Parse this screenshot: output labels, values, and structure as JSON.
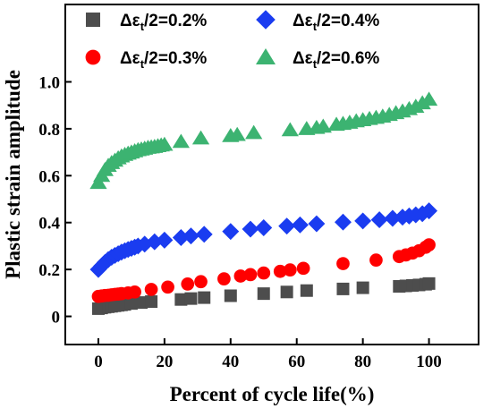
{
  "chart_data": {
    "type": "scatter",
    "xlabel": "Percent of cycle life(%)",
    "ylabel": "Plastic strain amplitude",
    "xlim": [
      -10,
      115
    ],
    "ylim": [
      -0.12,
      1.33
    ],
    "xticks": [
      0,
      20,
      40,
      60,
      80,
      100
    ],
    "yticks": [
      0,
      0.2,
      0.4,
      0.6,
      0.8,
      1.0
    ],
    "xtick_labels": [
      "0",
      "20",
      "40",
      "60",
      "80",
      "100"
    ],
    "ytick_labels": [
      "0",
      "0.2",
      "0.4",
      "0.6",
      "0.8",
      "1.0"
    ],
    "grid": false,
    "legend_position": "top",
    "series": [
      {
        "name": "Δε/2=0.2%",
        "name_prefix": "Δε",
        "name_sub": "t",
        "name_suffix": "/2=0.2%",
        "marker": "square",
        "color": "#4d4d4d",
        "x": [
          0,
          1,
          2,
          3,
          4,
          5,
          6,
          7,
          8,
          10,
          13,
          16,
          25,
          28,
          32,
          40,
          50,
          57,
          63,
          74,
          80,
          91,
          93,
          95,
          97,
          99,
          100
        ],
        "y": [
          0.033,
          0.036,
          0.039,
          0.041,
          0.043,
          0.045,
          0.047,
          0.049,
          0.051,
          0.055,
          0.059,
          0.063,
          0.072,
          0.076,
          0.08,
          0.088,
          0.097,
          0.104,
          0.11,
          0.117,
          0.122,
          0.128,
          0.13,
          0.132,
          0.134,
          0.137,
          0.14
        ]
      },
      {
        "name": "Δε/2=0.3%",
        "name_prefix": "Δε",
        "name_sub": "t",
        "name_suffix": "/2=0.3%",
        "marker": "circle",
        "color": "#ff0000",
        "x": [
          0,
          1,
          2,
          3,
          4,
          5,
          6,
          7,
          9,
          11,
          16,
          21,
          27,
          31,
          38,
          43,
          46,
          50,
          55,
          58,
          62,
          74,
          84,
          91,
          93,
          95,
          97,
          99,
          100
        ],
        "y": [
          0.085,
          0.087,
          0.089,
          0.09,
          0.092,
          0.094,
          0.095,
          0.097,
          0.1,
          0.104,
          0.115,
          0.125,
          0.138,
          0.148,
          0.16,
          0.172,
          0.178,
          0.185,
          0.192,
          0.198,
          0.205,
          0.225,
          0.24,
          0.255,
          0.262,
          0.27,
          0.28,
          0.295,
          0.305
        ]
      },
      {
        "name": "Δε/2=0.4%",
        "name_prefix": "Δε",
        "name_sub": "t",
        "name_suffix": "/2=0.4%",
        "marker": "diamond",
        "color": "#1a3cf0",
        "x": [
          0,
          1,
          2,
          3,
          4,
          5,
          6,
          7,
          8,
          9,
          10,
          11,
          12,
          14,
          17,
          20,
          25,
          28,
          32,
          40,
          46,
          50,
          57,
          61,
          66,
          74,
          80,
          85,
          89,
          92,
          94,
          96,
          98,
          100
        ],
        "y": [
          0.2,
          0.215,
          0.23,
          0.242,
          0.252,
          0.26,
          0.267,
          0.274,
          0.28,
          0.285,
          0.29,
          0.295,
          0.3,
          0.308,
          0.318,
          0.325,
          0.336,
          0.343,
          0.35,
          0.362,
          0.372,
          0.378,
          0.385,
          0.39,
          0.395,
          0.402,
          0.407,
          0.412,
          0.418,
          0.423,
          0.428,
          0.433,
          0.438,
          0.45
        ]
      },
      {
        "name": "Δε/2=0.6%",
        "name_prefix": "Δε",
        "name_sub": "t",
        "name_suffix": "/2=0.6%",
        "marker": "triangle",
        "color": "#3cb371",
        "x": [
          0,
          1,
          2,
          3,
          4,
          5,
          6,
          7,
          8,
          9,
          10,
          11,
          12,
          13,
          14,
          15,
          16,
          17,
          18,
          19,
          20,
          25,
          31,
          40,
          42,
          47,
          58,
          63,
          66,
          68,
          72,
          74,
          76,
          78,
          80,
          82,
          84,
          86,
          88,
          90,
          92,
          94,
          96,
          98,
          100
        ],
        "y": [
          0.57,
          0.6,
          0.625,
          0.643,
          0.655,
          0.665,
          0.675,
          0.683,
          0.69,
          0.695,
          0.7,
          0.705,
          0.71,
          0.713,
          0.716,
          0.72,
          0.722,
          0.724,
          0.727,
          0.73,
          0.733,
          0.745,
          0.76,
          0.77,
          0.775,
          0.783,
          0.795,
          0.8,
          0.805,
          0.81,
          0.818,
          0.822,
          0.827,
          0.833,
          0.838,
          0.843,
          0.848,
          0.853,
          0.86,
          0.868,
          0.875,
          0.885,
          0.895,
          0.91,
          0.925
        ]
      }
    ]
  }
}
